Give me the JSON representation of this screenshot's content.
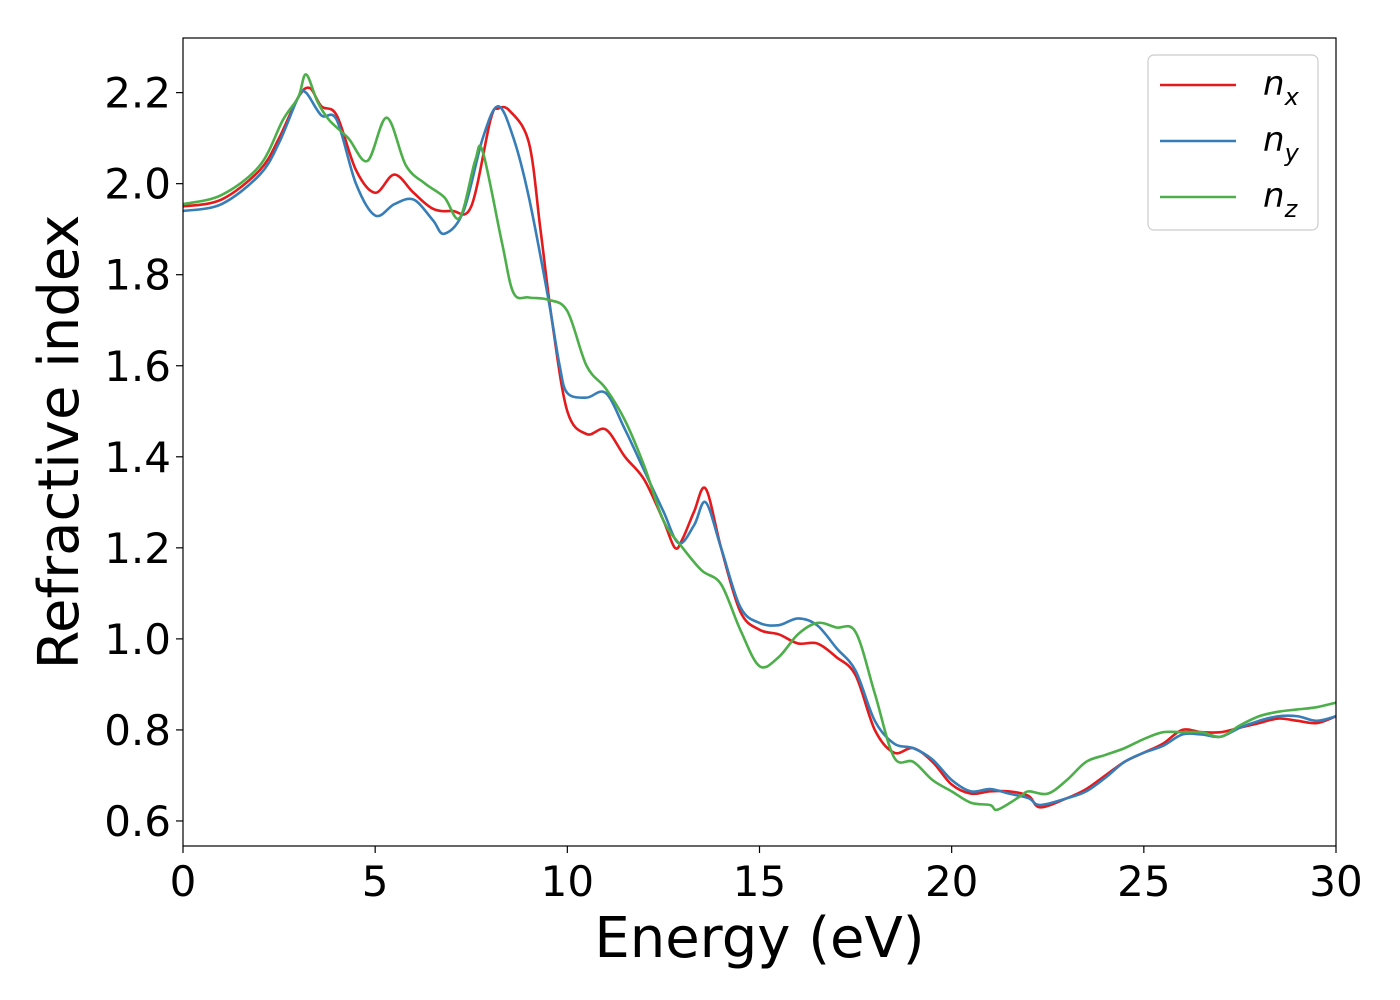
{
  "chart_data": {
    "type": "line",
    "title": "",
    "xlabel": "Energy (eV)",
    "ylabel": "Refractive index",
    "xlim": [
      0,
      30
    ],
    "ylim": [
      0.545,
      2.32
    ],
    "xticks": [
      0,
      5,
      10,
      15,
      20,
      25,
      30
    ],
    "yticks": [
      0.6,
      0.8,
      1.0,
      1.2,
      1.4,
      1.6,
      1.8,
      2.0,
      2.2
    ],
    "xtick_labels": [
      "0",
      "5",
      "10",
      "15",
      "20",
      "25",
      "30"
    ],
    "ytick_labels": [
      "0.6",
      "0.8",
      "1.0",
      "1.2",
      "1.4",
      "1.6",
      "1.8",
      "2.0",
      "2.2"
    ],
    "grid": false,
    "legend_position": "top-right",
    "series": [
      {
        "name": "n_x",
        "label_main": "n",
        "label_sub": "x",
        "color": "#e41a1c",
        "points": [
          [
            0,
            1.95
          ],
          [
            1,
            1.965
          ],
          [
            2,
            2.03
          ],
          [
            2.5,
            2.1
          ],
          [
            3,
            2.19
          ],
          [
            3.3,
            2.21
          ],
          [
            3.6,
            2.17
          ],
          [
            4,
            2.15
          ],
          [
            4.5,
            2.03
          ],
          [
            5,
            1.98
          ],
          [
            5.5,
            2.02
          ],
          [
            6,
            1.98
          ],
          [
            6.5,
            1.945
          ],
          [
            7,
            1.94
          ],
          [
            7.5,
            1.95
          ],
          [
            8,
            2.14
          ],
          [
            8.2,
            2.165
          ],
          [
            8.5,
            2.16
          ],
          [
            9,
            2.09
          ],
          [
            9.3,
            1.9
          ],
          [
            9.6,
            1.7
          ],
          [
            10,
            1.5
          ],
          [
            10.5,
            1.45
          ],
          [
            11,
            1.46
          ],
          [
            11.5,
            1.4
          ],
          [
            12,
            1.35
          ],
          [
            12.5,
            1.26
          ],
          [
            12.8,
            1.2
          ],
          [
            13,
            1.22
          ],
          [
            13.3,
            1.28
          ],
          [
            13.6,
            1.33
          ],
          [
            14,
            1.2
          ],
          [
            14.5,
            1.06
          ],
          [
            15,
            1.02
          ],
          [
            15.5,
            1.01
          ],
          [
            16,
            0.99
          ],
          [
            16.5,
            0.99
          ],
          [
            17,
            0.96
          ],
          [
            17.5,
            0.92
          ],
          [
            18,
            0.8
          ],
          [
            18.5,
            0.75
          ],
          [
            19,
            0.76
          ],
          [
            19.5,
            0.73
          ],
          [
            20,
            0.68
          ],
          [
            20.5,
            0.66
          ],
          [
            21,
            0.665
          ],
          [
            21.5,
            0.665
          ],
          [
            22,
            0.655
          ],
          [
            22.3,
            0.63
          ],
          [
            23,
            0.65
          ],
          [
            23.5,
            0.67
          ],
          [
            24,
            0.7
          ],
          [
            24.5,
            0.73
          ],
          [
            25,
            0.75
          ],
          [
            25.5,
            0.77
          ],
          [
            26,
            0.8
          ],
          [
            26.5,
            0.795
          ],
          [
            27,
            0.795
          ],
          [
            27.5,
            0.805
          ],
          [
            28,
            0.815
          ],
          [
            28.5,
            0.825
          ],
          [
            29,
            0.82
          ],
          [
            29.5,
            0.815
          ],
          [
            30,
            0.83
          ]
        ]
      },
      {
        "name": "n_y",
        "label_main": "n",
        "label_sub": "y",
        "color": "#377eb8",
        "points": [
          [
            0,
            1.94
          ],
          [
            1,
            1.955
          ],
          [
            2,
            2.02
          ],
          [
            2.5,
            2.09
          ],
          [
            3,
            2.19
          ],
          [
            3.2,
            2.2
          ],
          [
            3.6,
            2.15
          ],
          [
            4,
            2.14
          ],
          [
            4.5,
            2.0
          ],
          [
            5,
            1.93
          ],
          [
            5.5,
            1.955
          ],
          [
            6,
            1.965
          ],
          [
            6.5,
            1.92
          ],
          [
            6.8,
            1.89
          ],
          [
            7.3,
            1.94
          ],
          [
            7.8,
            2.1
          ],
          [
            8.2,
            2.17
          ],
          [
            8.6,
            2.1
          ],
          [
            9,
            1.97
          ],
          [
            9.5,
            1.75
          ],
          [
            9.8,
            1.6
          ],
          [
            10,
            1.54
          ],
          [
            10.5,
            1.53
          ],
          [
            11,
            1.54
          ],
          [
            11.5,
            1.46
          ],
          [
            12,
            1.37
          ],
          [
            12.5,
            1.28
          ],
          [
            12.9,
            1.21
          ],
          [
            13.3,
            1.25
          ],
          [
            13.6,
            1.3
          ],
          [
            14,
            1.2
          ],
          [
            14.5,
            1.07
          ],
          [
            15,
            1.035
          ],
          [
            15.5,
            1.03
          ],
          [
            16,
            1.045
          ],
          [
            16.5,
            1.03
          ],
          [
            17,
            0.98
          ],
          [
            17.5,
            0.93
          ],
          [
            18,
            0.82
          ],
          [
            18.5,
            0.77
          ],
          [
            19,
            0.76
          ],
          [
            19.5,
            0.735
          ],
          [
            20,
            0.69
          ],
          [
            20.5,
            0.665
          ],
          [
            21,
            0.67
          ],
          [
            21.5,
            0.66
          ],
          [
            22,
            0.65
          ],
          [
            22.3,
            0.635
          ],
          [
            23,
            0.65
          ],
          [
            23.5,
            0.665
          ],
          [
            24,
            0.695
          ],
          [
            24.5,
            0.73
          ],
          [
            25,
            0.75
          ],
          [
            25.5,
            0.765
          ],
          [
            26,
            0.79
          ],
          [
            26.5,
            0.79
          ],
          [
            27,
            0.785
          ],
          [
            27.5,
            0.805
          ],
          [
            28,
            0.82
          ],
          [
            28.5,
            0.83
          ],
          [
            29,
            0.83
          ],
          [
            29.5,
            0.82
          ],
          [
            30,
            0.83
          ]
        ]
      },
      {
        "name": "n_z",
        "label_main": "n",
        "label_sub": "z",
        "color": "#4daf4a",
        "points": [
          [
            0,
            1.955
          ],
          [
            1,
            1.975
          ],
          [
            2,
            2.04
          ],
          [
            2.6,
            2.14
          ],
          [
            3,
            2.19
          ],
          [
            3.2,
            2.24
          ],
          [
            3.5,
            2.18
          ],
          [
            3.8,
            2.14
          ],
          [
            4.3,
            2.1
          ],
          [
            4.8,
            2.05
          ],
          [
            5.3,
            2.145
          ],
          [
            5.8,
            2.04
          ],
          [
            6.3,
            2.0
          ],
          [
            6.8,
            1.97
          ],
          [
            7.2,
            1.925
          ],
          [
            7.6,
            2.05
          ],
          [
            7.8,
            2.07
          ],
          [
            8.3,
            1.87
          ],
          [
            8.6,
            1.76
          ],
          [
            9,
            1.75
          ],
          [
            9.5,
            1.745
          ],
          [
            10,
            1.72
          ],
          [
            10.5,
            1.6
          ],
          [
            11,
            1.55
          ],
          [
            11.5,
            1.48
          ],
          [
            12,
            1.38
          ],
          [
            12.5,
            1.26
          ],
          [
            13,
            1.2
          ],
          [
            13.5,
            1.15
          ],
          [
            14,
            1.12
          ],
          [
            14.5,
            1.02
          ],
          [
            15,
            0.94
          ],
          [
            15.5,
            0.96
          ],
          [
            16,
            1.01
          ],
          [
            16.5,
            1.035
          ],
          [
            17,
            1.025
          ],
          [
            17.5,
            1.015
          ],
          [
            18,
            0.88
          ],
          [
            18.5,
            0.74
          ],
          [
            19,
            0.73
          ],
          [
            19.5,
            0.69
          ],
          [
            20,
            0.665
          ],
          [
            20.5,
            0.64
          ],
          [
            21,
            0.635
          ],
          [
            21.2,
            0.625
          ],
          [
            21.8,
            0.655
          ],
          [
            22,
            0.665
          ],
          [
            22.5,
            0.66
          ],
          [
            23,
            0.69
          ],
          [
            23.5,
            0.73
          ],
          [
            24,
            0.745
          ],
          [
            24.5,
            0.76
          ],
          [
            25,
            0.78
          ],
          [
            25.5,
            0.795
          ],
          [
            26,
            0.795
          ],
          [
            26.5,
            0.795
          ],
          [
            27,
            0.785
          ],
          [
            27.5,
            0.81
          ],
          [
            28,
            0.83
          ],
          [
            28.5,
            0.84
          ],
          [
            29,
            0.845
          ],
          [
            29.5,
            0.85
          ],
          [
            30,
            0.86
          ]
        ]
      }
    ]
  }
}
